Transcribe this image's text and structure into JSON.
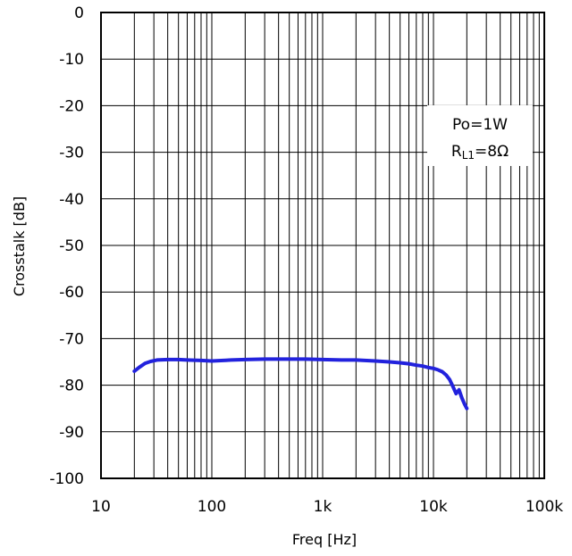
{
  "chart_data": {
    "type": "line",
    "title": "",
    "xlabel": "Freq [Hz]",
    "ylabel": "Crosstalk [dB]",
    "xscale": "log",
    "xlim": [
      10,
      100000
    ],
    "ylim": [
      -100,
      0
    ],
    "grid": true,
    "x_ticks": [
      10,
      100,
      1000,
      10000,
      100000
    ],
    "x_tick_labels": [
      "10",
      "100",
      "1k",
      "10k",
      "100k"
    ],
    "y_ticks": [
      0,
      -10,
      -20,
      -30,
      -40,
      -50,
      -60,
      -70,
      -80,
      -90,
      -100
    ],
    "y_tick_labels": [
      "0",
      "-10",
      "-20",
      "-30",
      "-40",
      "-50",
      "-60",
      "-70",
      "-80",
      "-90",
      "-100"
    ],
    "annotation": {
      "line1": "Po=1W",
      "line2_main": "R",
      "line2_sub": "L1",
      "line2_rest": "=8Ω"
    },
    "colors": {
      "series": "#2222dd",
      "grid": "#000000"
    },
    "series": [
      {
        "x": [
          20,
          22,
          25,
          28,
          32,
          40,
          50,
          60,
          80,
          100,
          150,
          200,
          300,
          500,
          700,
          1000,
          1500,
          2000,
          3000,
          4000,
          5000,
          6000,
          7000,
          8000,
          9000,
          10000,
          11000,
          12000,
          13000,
          14000,
          15000,
          16000,
          17000,
          18000,
          19000,
          20000
        ],
        "y": [
          -77.0,
          -76.2,
          -75.3,
          -74.9,
          -74.6,
          -74.5,
          -74.5,
          -74.6,
          -74.7,
          -74.8,
          -74.6,
          -74.5,
          -74.4,
          -74.4,
          -74.4,
          -74.5,
          -74.6,
          -74.6,
          -74.8,
          -75.0,
          -75.2,
          -75.4,
          -75.7,
          -75.9,
          -76.2,
          -76.4,
          -76.7,
          -77.1,
          -77.8,
          -78.8,
          -80.3,
          -81.8,
          -81.0,
          -82.7,
          -84.0,
          -85.0
        ]
      }
    ]
  }
}
